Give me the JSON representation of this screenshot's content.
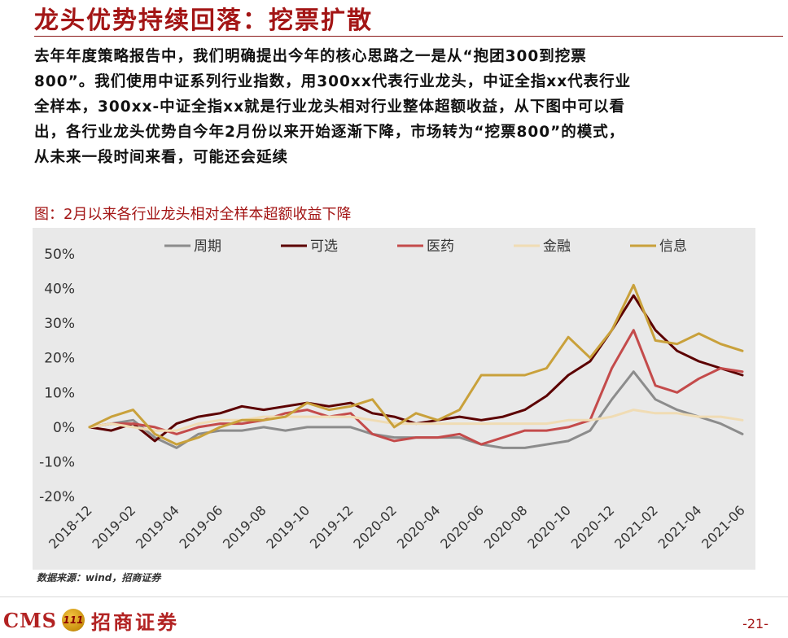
{
  "header": {
    "title": "龙头优势持续回落：挖票扩散"
  },
  "body_text": {
    "lines": [
      "去年年度策略报告中，我们明确提出今年的核心思路之一是从“抱团300到挖票",
      "800”。我们使用中证系列行业指数，用300xx代表行业龙头，中证全指xx代表行业",
      "全样本，300xx-中证全指xx就是行业龙头相对行业整体超额收益，从下图中可以看",
      "出，各行业龙头优势自今年2月份以来开始逐渐下降，市场转为“挖票800”的模式，",
      "从未来一段时间来看，可能还会延续"
    ]
  },
  "figure": {
    "caption": "图：2月以来各行业龙头相对全样本超额收益下降",
    "source": "数据来源：wind，招商证券"
  },
  "footer": {
    "logo_text": "CMS",
    "logo_badge": "111",
    "company": "招商证券",
    "page": "-21-"
  },
  "chart_data": {
    "type": "line",
    "title": "",
    "xlabel": "",
    "ylabel": "",
    "ylim": [
      -20,
      50
    ],
    "yticks": [
      "50%",
      "40%",
      "30%",
      "20%",
      "10%",
      "0%",
      "-10%",
      "-20%"
    ],
    "ytick_values": [
      50,
      40,
      30,
      20,
      10,
      0,
      -10,
      -20
    ],
    "x_tick_labels": [
      "2018-12",
      "2019-02",
      "2019-04",
      "2019-06",
      "2019-08",
      "2019-10",
      "2019-12",
      "2020-02",
      "2020-04",
      "2020-06",
      "2020-08",
      "2020-10",
      "2020-12",
      "2021-02",
      "2021-04",
      "2021-06"
    ],
    "x_range": [
      "2018-12",
      "2021-06"
    ],
    "grid": false,
    "legend_position": "top",
    "x": [
      "2018-12",
      "2019-01",
      "2019-02",
      "2019-03",
      "2019-04",
      "2019-05",
      "2019-06",
      "2019-07",
      "2019-08",
      "2019-09",
      "2019-10",
      "2019-11",
      "2019-12",
      "2020-01",
      "2020-02",
      "2020-03",
      "2020-04",
      "2020-05",
      "2020-06",
      "2020-07",
      "2020-08",
      "2020-09",
      "2020-10",
      "2020-11",
      "2020-12",
      "2021-01",
      "2021-02",
      "2021-03",
      "2021-04",
      "2021-05",
      "2021-06"
    ],
    "series": [
      {
        "name": "周期",
        "color": "#8c8c8c",
        "values": [
          0,
          1,
          2,
          -3,
          -6,
          -2,
          -1,
          -1,
          0,
          -1,
          0,
          0,
          0,
          -2,
          -3,
          -3,
          -3,
          -3,
          -5,
          -6,
          -6,
          -5,
          -4,
          -1,
          8,
          16,
          8,
          5,
          3,
          1,
          -2
        ]
      },
      {
        "name": "可选",
        "color": "#5c0000",
        "values": [
          0,
          -1,
          1,
          -4,
          1,
          3,
          4,
          6,
          5,
          6,
          7,
          6,
          7,
          4,
          3,
          1,
          2,
          3,
          2,
          3,
          5,
          9,
          15,
          19,
          28,
          38,
          28,
          22,
          19,
          17,
          15
        ]
      },
      {
        "name": "医药",
        "color": "#c44b4b",
        "values": [
          0,
          1,
          1,
          0,
          -2,
          0,
          1,
          1,
          2,
          4,
          5,
          3,
          4,
          -2,
          -4,
          -3,
          -3,
          -2,
          -5,
          -3,
          -1,
          -1,
          0,
          2,
          17,
          28,
          12,
          10,
          14,
          17,
          16
        ]
      },
      {
        "name": "金融",
        "color": "#f0dcb4",
        "values": [
          0,
          1,
          0,
          -1,
          -1,
          1,
          2,
          2,
          3,
          3,
          3,
          3,
          3,
          2,
          1,
          1,
          1,
          1,
          1,
          1,
          1,
          1,
          2,
          2,
          3,
          5,
          4,
          4,
          3,
          3,
          2
        ]
      },
      {
        "name": "信息",
        "color": "#c9a13b",
        "values": [
          0,
          3,
          5,
          -2,
          -5,
          -3,
          0,
          2,
          2,
          3,
          7,
          5,
          6,
          8,
          0,
          4,
          2,
          5,
          15,
          15,
          15,
          17,
          26,
          20,
          28,
          41,
          25,
          24,
          27,
          24,
          22
        ]
      }
    ]
  }
}
